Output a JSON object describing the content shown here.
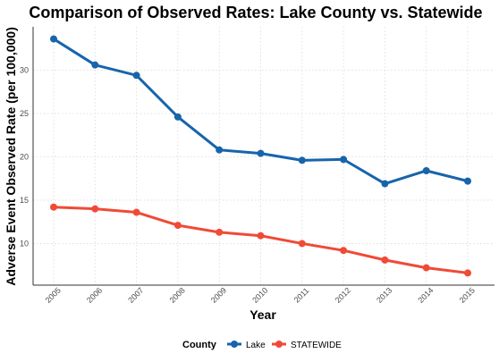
{
  "chart_data": {
    "type": "line",
    "title": "Comparison of Observed Rates: Lake County vs. Statewide",
    "xlabel": "Year",
    "ylabel": "Adverse Event Observed Rate (per 100,000)",
    "x": [
      "2005",
      "2006",
      "2007",
      "2008",
      "2009",
      "2010",
      "2011",
      "2012",
      "2013",
      "2014",
      "2015"
    ],
    "y_ticks": [
      10,
      15,
      20,
      25,
      30
    ],
    "ylim": [
      5.2,
      35.0
    ],
    "grid": true,
    "legend": {
      "title": "County",
      "position": "bottom"
    },
    "series": [
      {
        "name": "Lake",
        "color": "#1764AB",
        "values": [
          33.6,
          30.6,
          29.4,
          24.6,
          20.8,
          20.4,
          19.6,
          19.7,
          16.9,
          18.4,
          17.2
        ]
      },
      {
        "name": "STATEWIDE",
        "color": "#F04A37",
        "values": [
          14.2,
          14.0,
          13.6,
          12.1,
          11.3,
          10.9,
          10.0,
          9.2,
          8.1,
          7.2,
          6.6
        ]
      }
    ]
  }
}
